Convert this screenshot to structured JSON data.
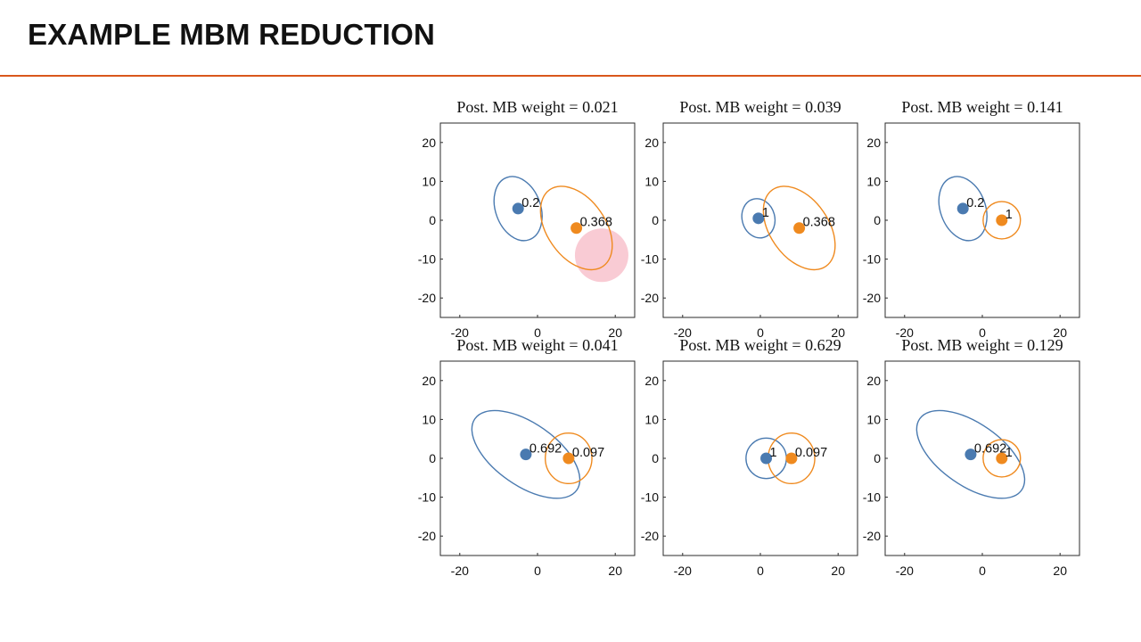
{
  "slide": {
    "title": "EXAMPLE MBM REDUCTION",
    "accent_color": "#d9571c"
  },
  "chart_data": [
    {
      "type": "scatter",
      "title": "Post. MB weight = 0.021",
      "xlim": [
        -25,
        25
      ],
      "ylim": [
        -25,
        25
      ],
      "xticks": [
        -20,
        0,
        20
      ],
      "yticks": [
        20,
        10,
        0,
        -10,
        -20
      ],
      "components": [
        {
          "name": "blue",
          "color": "#4a7ab0",
          "x": -5,
          "y": 3,
          "label": "0.2",
          "ellipse": {
            "rx": 5.8,
            "ry": 8.5,
            "angle": -20
          }
        },
        {
          "name": "orange",
          "color": "#ef8a1f",
          "x": 10,
          "y": -2,
          "label": "0.368",
          "ellipse": {
            "rx": 7.5,
            "ry": 12,
            "angle": -35
          }
        }
      ],
      "highlight": {
        "x": 16.5,
        "y": -9,
        "color": "#f4a0b0"
      }
    },
    {
      "type": "scatter",
      "title": "Post. MB weight = 0.039",
      "xlim": [
        -25,
        25
      ],
      "ylim": [
        -25,
        25
      ],
      "xticks": [
        -20,
        0,
        20
      ],
      "yticks": [
        20,
        10,
        0,
        -10,
        -20
      ],
      "components": [
        {
          "name": "blue",
          "color": "#4a7ab0",
          "x": -0.5,
          "y": 0.5,
          "label": "1",
          "ellipse": {
            "rx": 4.2,
            "ry": 5.1,
            "angle": -15
          }
        },
        {
          "name": "orange",
          "color": "#ef8a1f",
          "x": 10,
          "y": -2,
          "label": "0.368",
          "ellipse": {
            "rx": 7.5,
            "ry": 12,
            "angle": -35
          }
        }
      ]
    },
    {
      "type": "scatter",
      "title": "Post. MB weight = 0.141",
      "xlim": [
        -25,
        25
      ],
      "ylim": [
        -25,
        25
      ],
      "xticks": [
        -20,
        0,
        20
      ],
      "yticks": [
        20,
        10,
        0,
        -10,
        -20
      ],
      "components": [
        {
          "name": "blue",
          "color": "#4a7ab0",
          "x": -5,
          "y": 3,
          "label": "0.2",
          "ellipse": {
            "rx": 5.8,
            "ry": 8.5,
            "angle": -20
          }
        },
        {
          "name": "orange",
          "color": "#ef8a1f",
          "x": 5,
          "y": 0,
          "label": "1",
          "ellipse": {
            "rx": 4.8,
            "ry": 4.8,
            "angle": 0
          }
        }
      ]
    },
    {
      "type": "scatter",
      "title": "Post. MB weight = 0.041",
      "xlim": [
        -25,
        25
      ],
      "ylim": [
        -25,
        25
      ],
      "xticks": [
        -20,
        0,
        20
      ],
      "yticks": [
        20,
        10,
        0,
        -10,
        -20
      ],
      "components": [
        {
          "name": "blue",
          "color": "#4a7ab0",
          "x": -3,
          "y": 1,
          "label": "0.692",
          "ellipse": {
            "rx": 16,
            "ry": 8,
            "angle": 35
          }
        },
        {
          "name": "orange",
          "color": "#ef8a1f",
          "x": 8,
          "y": 0,
          "label": "0.097",
          "ellipse": {
            "rx": 6,
            "ry": 6.5,
            "angle": 0
          }
        }
      ]
    },
    {
      "type": "scatter",
      "title": "Post. MB weight = 0.629",
      "xlim": [
        -25,
        25
      ],
      "ylim": [
        -25,
        25
      ],
      "xticks": [
        -20,
        0,
        20
      ],
      "yticks": [
        20,
        10,
        0,
        -10,
        -20
      ],
      "components": [
        {
          "name": "blue",
          "color": "#4a7ab0",
          "x": 1.5,
          "y": 0,
          "label": "1",
          "ellipse": {
            "rx": 5.2,
            "ry": 5.2,
            "angle": 0
          }
        },
        {
          "name": "orange",
          "color": "#ef8a1f",
          "x": 8,
          "y": 0,
          "label": "0.097",
          "ellipse": {
            "rx": 6,
            "ry": 6.5,
            "angle": 0
          }
        }
      ]
    },
    {
      "type": "scatter",
      "title": "Post. MB weight = 0.129",
      "xlim": [
        -25,
        25
      ],
      "ylim": [
        -25,
        25
      ],
      "xticks": [
        -20,
        0,
        20
      ],
      "yticks": [
        20,
        10,
        0,
        -10,
        -20
      ],
      "components": [
        {
          "name": "blue",
          "color": "#4a7ab0",
          "x": -3,
          "y": 1,
          "label": "0.692",
          "ellipse": {
            "rx": 16,
            "ry": 8,
            "angle": 35
          }
        },
        {
          "name": "orange",
          "color": "#ef8a1f",
          "x": 5,
          "y": 0,
          "label": "1",
          "ellipse": {
            "rx": 4.8,
            "ry": 4.8,
            "angle": 0
          }
        }
      ]
    }
  ]
}
